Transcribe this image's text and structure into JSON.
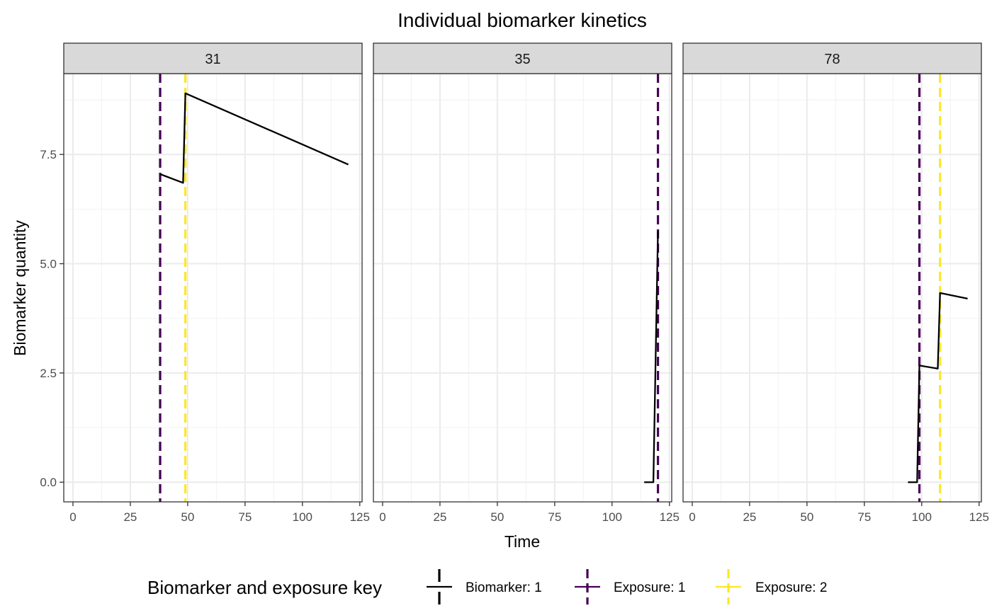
{
  "chart_data": {
    "type": "line",
    "title": "Individual biomarker kinetics",
    "xlabel": "Time",
    "ylabel": "Biomarker quantity",
    "xlim": [
      -4,
      126
    ],
    "ylim": [
      -0.45,
      9.35
    ],
    "x_ticks": [
      0,
      25,
      50,
      75,
      100,
      125
    ],
    "x_tick_labels": [
      "0",
      "25",
      "50",
      "75",
      "100",
      "125"
    ],
    "y_ticks": [
      0,
      2.5,
      5,
      7.5
    ],
    "y_tick_labels": [
      "0.0",
      "2.5",
      "5.0",
      "7.5"
    ],
    "grid": true,
    "legend_position": "bottom",
    "legend_title": "Biomarker and exposure key",
    "legend": [
      {
        "label": "Biomarker: 1",
        "color": "#000000",
        "style": "solid"
      },
      {
        "label": "Exposure: 1",
        "color": "#440154",
        "style": "dashed"
      },
      {
        "label": "Exposure: 2",
        "color": "#FDE725",
        "style": "dashed"
      }
    ],
    "panels": [
      {
        "strip": "31",
        "biomarker": {
          "x": [
            38,
            48,
            49,
            120
          ],
          "y": [
            7.05,
            6.85,
            8.9,
            7.27
          ]
        },
        "exposures": [
          {
            "type": "Exposure: 1",
            "x": 38
          },
          {
            "type": "Exposure: 2",
            "x": 49
          }
        ]
      },
      {
        "strip": "35",
        "biomarker": {
          "x": [
            114,
            118,
            120
          ],
          "y": [
            0,
            0,
            5.75
          ]
        },
        "exposures": [
          {
            "type": "Exposure: 1",
            "x": 120
          }
        ]
      },
      {
        "strip": "78",
        "biomarker": {
          "x": [
            94,
            98,
            99,
            107,
            108,
            120
          ],
          "y": [
            0,
            0,
            2.67,
            2.6,
            4.33,
            4.2
          ]
        },
        "exposures": [
          {
            "type": "Exposure: 1",
            "x": 99
          },
          {
            "type": "Exposure: 2",
            "x": 108
          }
        ]
      }
    ]
  }
}
